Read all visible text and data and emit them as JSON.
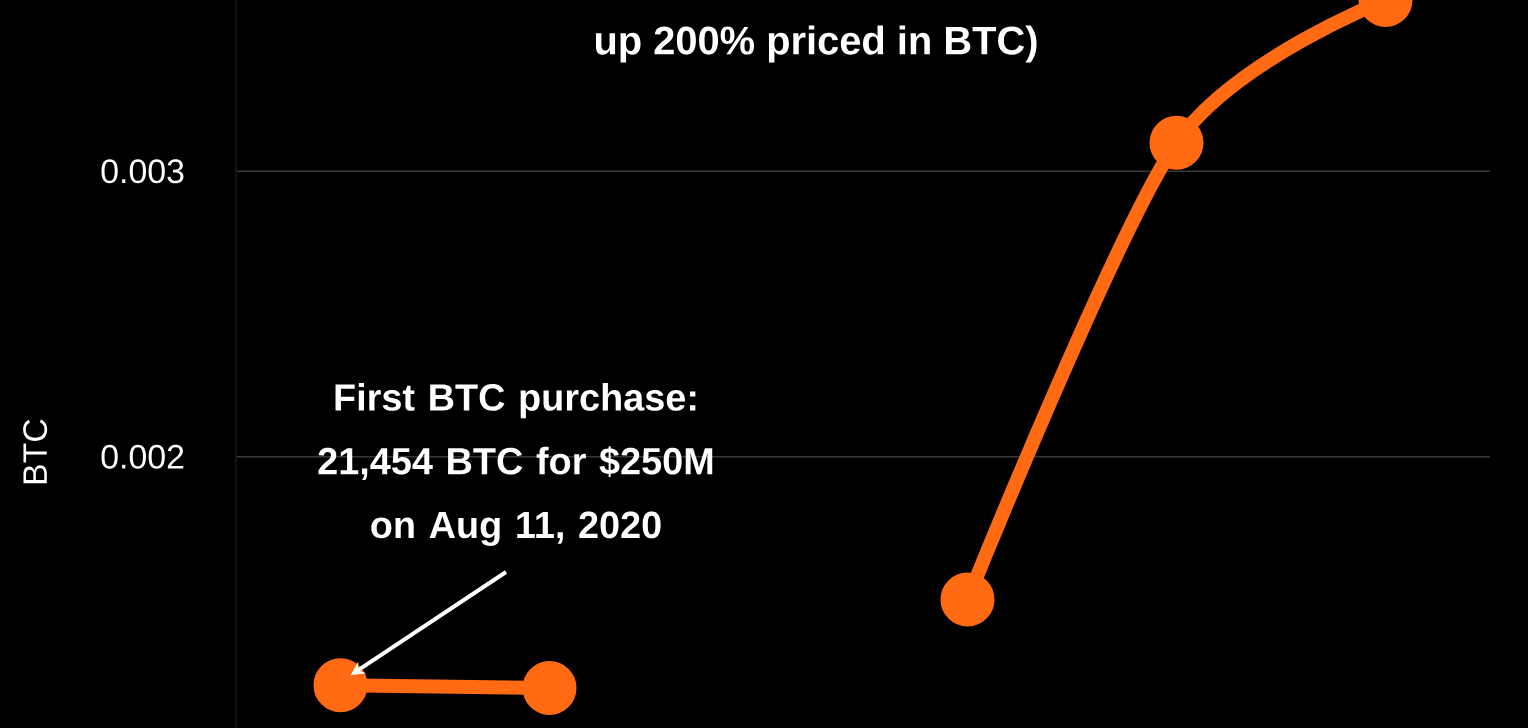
{
  "chart_data": {
    "type": "line",
    "title": "up 200% priced in BTC)",
    "ylabel": "BTC",
    "categories": [
      null,
      null,
      null,
      null,
      null,
      null
    ],
    "values": [
      0.0012,
      0.00119,
      null,
      0.0015,
      0.0031,
      0.0036
    ],
    "color": "#ff6a13",
    "marker": "circle",
    "line_style": "solid",
    "grid": "y",
    "ylim": [
      0.00105,
      0.0036
    ],
    "yticks": [
      0.002,
      0.003
    ],
    "annotations": [
      "First BTC purchase: 21,454 BTC for $250M on Aug 11, 2020"
    ]
  }
}
